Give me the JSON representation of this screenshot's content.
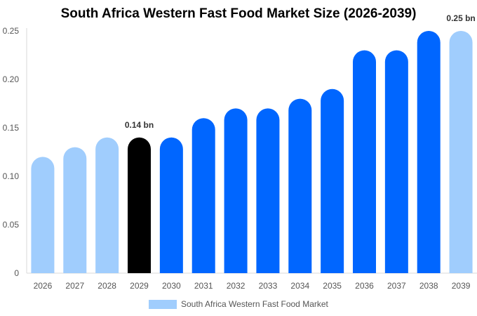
{
  "chart_data": {
    "type": "bar",
    "title": "South Africa Western Fast Food Market Size (2026-2039)",
    "categories": [
      "2026",
      "2027",
      "2028",
      "2029",
      "2030",
      "2031",
      "2032",
      "2033",
      "2034",
      "2035",
      "2036",
      "2037",
      "2038",
      "2039"
    ],
    "series": [
      {
        "name": "South Africa Western Fast Food Market",
        "values": [
          0.12,
          0.13,
          0.14,
          0.14,
          0.14,
          0.16,
          0.17,
          0.17,
          0.18,
          0.19,
          0.23,
          0.23,
          0.25,
          0.25
        ]
      }
    ],
    "bar_colors": [
      "#a0cdfd",
      "#a0cdfd",
      "#a0cdfd",
      "#000000",
      "#0066ff",
      "#0066ff",
      "#0066ff",
      "#0066ff",
      "#0066ff",
      "#0066ff",
      "#0066ff",
      "#0066ff",
      "#0066ff",
      "#a0cdfd"
    ],
    "data_labels": [
      {
        "index": 3,
        "text": "0.14 bn"
      },
      {
        "index": 13,
        "text": "0.25 bn"
      }
    ],
    "yticks": [
      0,
      0.05,
      0.1,
      0.15,
      0.2,
      0.25
    ],
    "ytick_labels": [
      "0",
      "0.05",
      "0.10",
      "0.15",
      "0.20",
      "0.25"
    ],
    "ylim": [
      0,
      0.25
    ],
    "xlabel": "",
    "ylabel": "",
    "legend": {
      "label": "South Africa Western Fast Food Market",
      "color": "#a0cdfd",
      "position": "bottom-center"
    }
  }
}
